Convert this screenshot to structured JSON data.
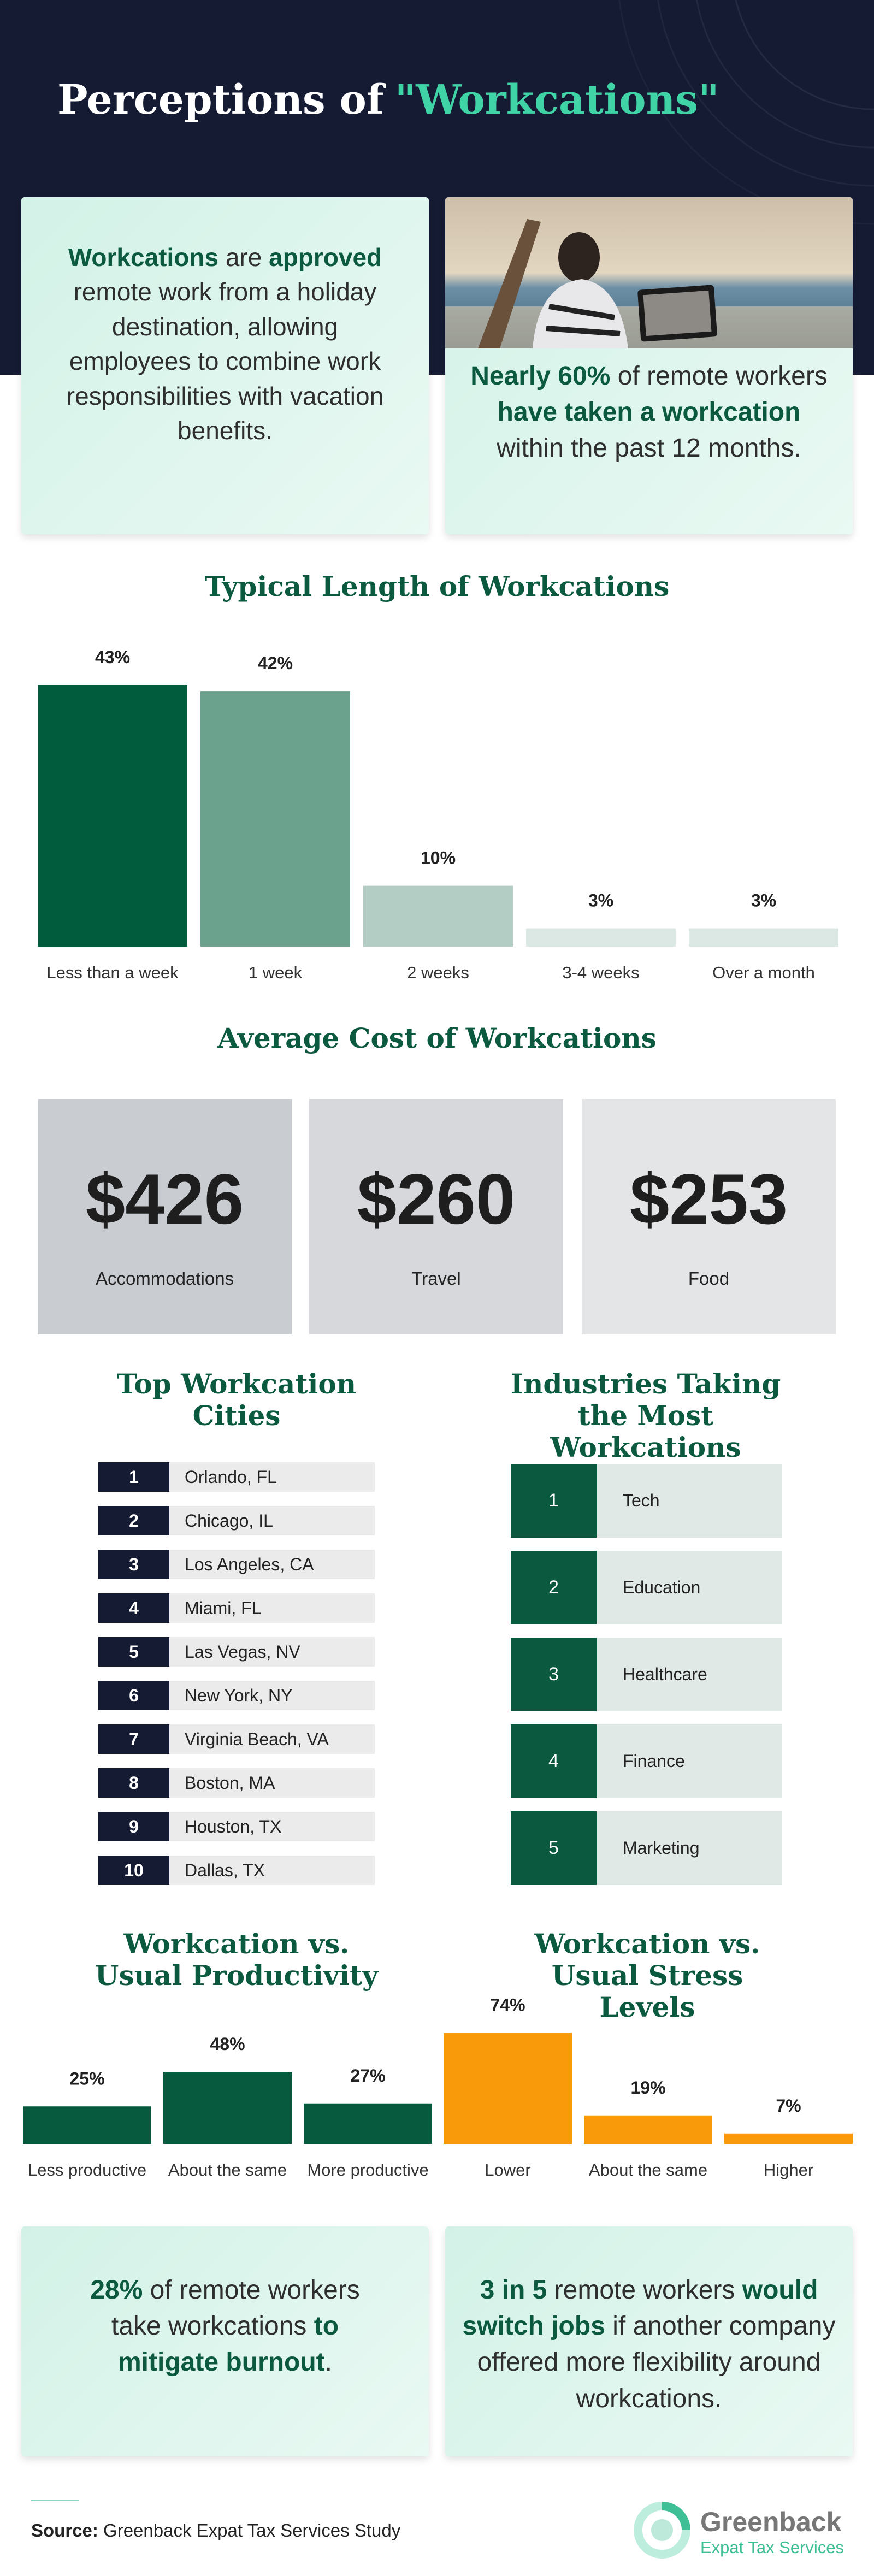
{
  "header": {
    "title_parts": [
      "Perceptions of",
      "\"Workcations\""
    ]
  },
  "callouts": [
    {
      "runs": [
        {
          "text": "Workcations",
          "bold": true
        },
        {
          "text": " are "
        },
        {
          "text": "approved",
          "bold": true
        },
        {
          "text": " remote work from a holiday destination, allowing employees to combine work responsibilities with vacation benefits."
        }
      ]
    },
    {
      "runs": [
        {
          "text": "Nearly 60%",
          "bold": true
        },
        {
          "text": " of remote workers "
        },
        {
          "text": "have taken a workcation",
          "bold": true
        },
        {
          "text": " within the past 12 months."
        }
      ]
    },
    {
      "runs": [
        {
          "text": "28%",
          "bold": true
        },
        {
          "text": " of remote workers take workcations "
        },
        {
          "text": "to mitigate burnout",
          "bold": true
        },
        {
          "text": "."
        }
      ]
    },
    {
      "runs": [
        {
          "text": "3 in 5",
          "bold": true
        },
        {
          "text": " remote workers "
        },
        {
          "text": "would switch jobs",
          "bold": true
        },
        {
          "text": " if another company offered more flexibility around workcations."
        }
      ]
    }
  ],
  "chart_data": [
    {
      "type": "bar",
      "title": "Typical Length of Workcations",
      "categories": [
        "Less than a week",
        "1 week",
        "2 weeks",
        "3-4 weeks",
        "Over a month"
      ],
      "values": [
        43,
        42,
        10,
        3,
        3
      ],
      "value_labels": [
        "43%",
        "42%",
        "10%",
        "3%",
        "3%"
      ],
      "colors": [
        "#005c3c",
        "#6aa28e",
        "#b3cdc4",
        "#dbe8e3",
        "#dbe8e3"
      ]
    },
    {
      "type": "bar",
      "title": "Workcation vs. Usual Productivity",
      "categories": [
        "Less productive",
        "About the same",
        "More productive"
      ],
      "values": [
        25,
        48,
        27
      ],
      "value_labels": [
        "25%",
        "48%",
        "27%"
      ],
      "color": "#075a3e"
    },
    {
      "type": "bar",
      "title": "Workcation vs. Usual Stress Levels",
      "categories": [
        "Lower",
        "About the same",
        "Higher"
      ],
      "values": [
        74,
        19,
        7
      ],
      "value_labels": [
        "74%",
        "19%",
        "7%"
      ],
      "color": "#f89a0a"
    }
  ],
  "costs": {
    "title": "Average Cost of Workcations",
    "items": [
      {
        "amount": "$426",
        "label": "Accommodations"
      },
      {
        "amount": "$260",
        "label": "Travel"
      },
      {
        "amount": "$253",
        "label": "Food"
      }
    ]
  },
  "cities": {
    "title": "Top Workcation Cities",
    "rows": [
      {
        "rank": 1,
        "name": "Orlando, FL"
      },
      {
        "rank": 2,
        "name": "Chicago, IL"
      },
      {
        "rank": 3,
        "name": "Los Angeles, CA"
      },
      {
        "rank": 4,
        "name": "Miami, FL"
      },
      {
        "rank": 5,
        "name": "Las Vegas, NV"
      },
      {
        "rank": 6,
        "name": "New York, NY"
      },
      {
        "rank": 7,
        "name": "Virginia Beach, VA"
      },
      {
        "rank": 8,
        "name": "Boston, MA"
      },
      {
        "rank": 9,
        "name": "Houston, TX"
      },
      {
        "rank": 10,
        "name": "Dallas, TX"
      }
    ]
  },
  "industries": {
    "title": "Industries Taking the Most Workcations",
    "rows": [
      {
        "rank": 1,
        "name": "Tech"
      },
      {
        "rank": 2,
        "name": "Education"
      },
      {
        "rank": 3,
        "name": "Healthcare"
      },
      {
        "rank": 4,
        "name": "Finance"
      },
      {
        "rank": 5,
        "name": "Marketing"
      }
    ]
  },
  "footer": {
    "source_label": "Source:",
    "source": "Greenback Expat Tax Services Study",
    "brand": "Greenback",
    "brand_sub": "Expat Tax Services"
  }
}
